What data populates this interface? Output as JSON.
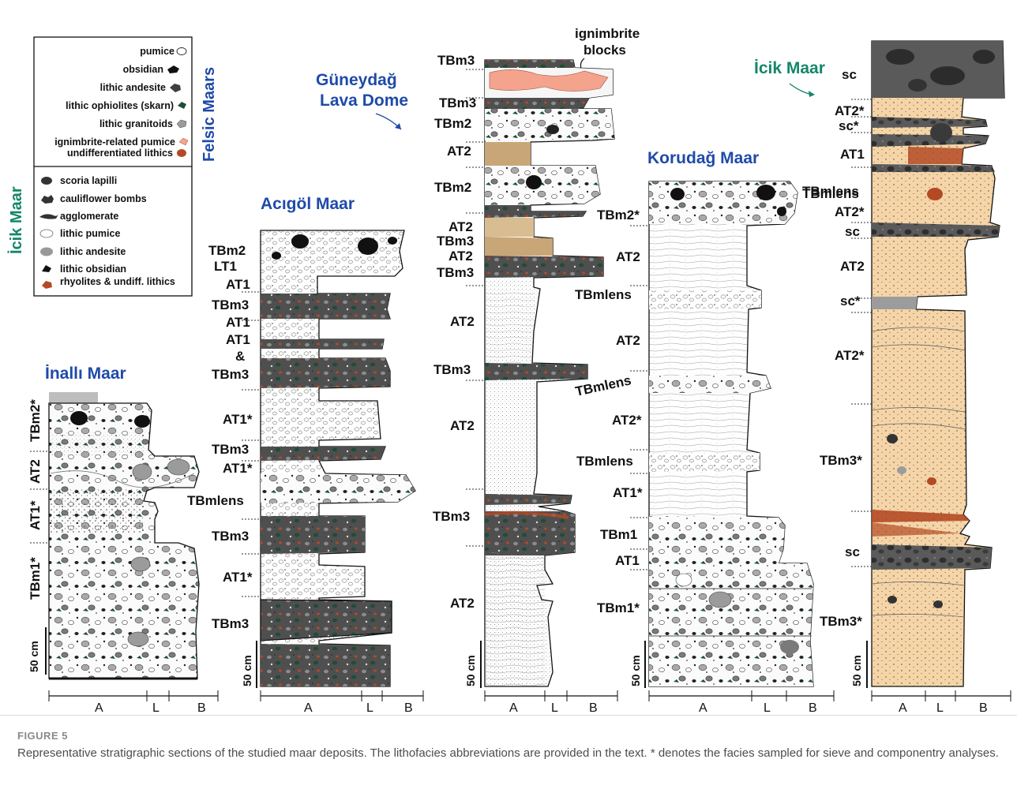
{
  "figure": {
    "label": "FIGURE 5",
    "caption": "Representative stratigraphic sections of the studied maar deposits. The lithofacies abbreviations are provided in the text. * denotes the facies sampled for sieve and componentry analyses."
  },
  "legend_felsic": {
    "group_label": "Felsic Maars",
    "items": [
      "pumice",
      "obsidian",
      "lithic andesite",
      "lithic ophiolites (skarn)",
      "lithic granitoids",
      "ignimbrite-related pumice",
      "undifferentiated lithics"
    ]
  },
  "legend_icik": {
    "group_label": "İcik Maar",
    "items": [
      "scoria lapilli",
      "cauliflower bombs",
      "agglomerate",
      "lithic pumice",
      "lithic andesite",
      "lithic obsidian",
      "rhyolites & undiff. lithics"
    ]
  },
  "colors": {
    "felsic_title": "#1f4aa8",
    "icik_title": "#15866a",
    "sand": "#f5d5a8",
    "dark": "#4f4f4f",
    "brown": "#b34a24",
    "salmon": "#f4a48c",
    "tan": "#c8a677"
  },
  "axis": {
    "a": "A",
    "l": "L",
    "b": "B"
  },
  "scale_label": "50 cm",
  "sections": {
    "inalli": {
      "title": "İnallı Maar",
      "labels": [
        "TBm2*",
        "AT2",
        "AT1*",
        "TBm1*"
      ]
    },
    "acigol": {
      "title": "Acıgöl Maar",
      "labels": [
        "TBm2",
        "LT1",
        "AT1",
        "TBm3",
        "AT1",
        "AT1",
        "&",
        "TBm3",
        "AT1*",
        "TBm3",
        "AT1*",
        "TBmlens",
        "TBm3",
        "AT1*",
        "TBm3"
      ]
    },
    "guneydag": {
      "title_line1": "Güneydağ",
      "title_line2": "Lava Dome",
      "annotation_line1": "ignimbrite",
      "annotation_line2": "blocks",
      "labels": [
        "TBm3",
        "TBm3",
        "TBm2",
        "AT2",
        "TBm2",
        "AT2",
        "TBm3",
        "AT2",
        "TBm3",
        "AT2",
        "TBm3",
        "AT2",
        "TBm3",
        "AT2"
      ]
    },
    "korudag": {
      "title": "Korudağ Maar",
      "labels": [
        "TBmlens",
        "TBm2*",
        "AT2",
        "TBmlens",
        "AT2",
        "TBmlens",
        "AT2*",
        "TBmlens",
        "AT1*",
        "TBm1",
        "AT1",
        "TBm1*"
      ]
    },
    "icik": {
      "title": "İcik Maar",
      "labels": [
        "sc",
        "AT2*",
        "sc*",
        "AT1",
        "TBmlens",
        "AT2*",
        "sc",
        "AT2",
        "sc*",
        "AT2*",
        "TBm3*",
        "sc",
        "TBm3*"
      ]
    }
  }
}
